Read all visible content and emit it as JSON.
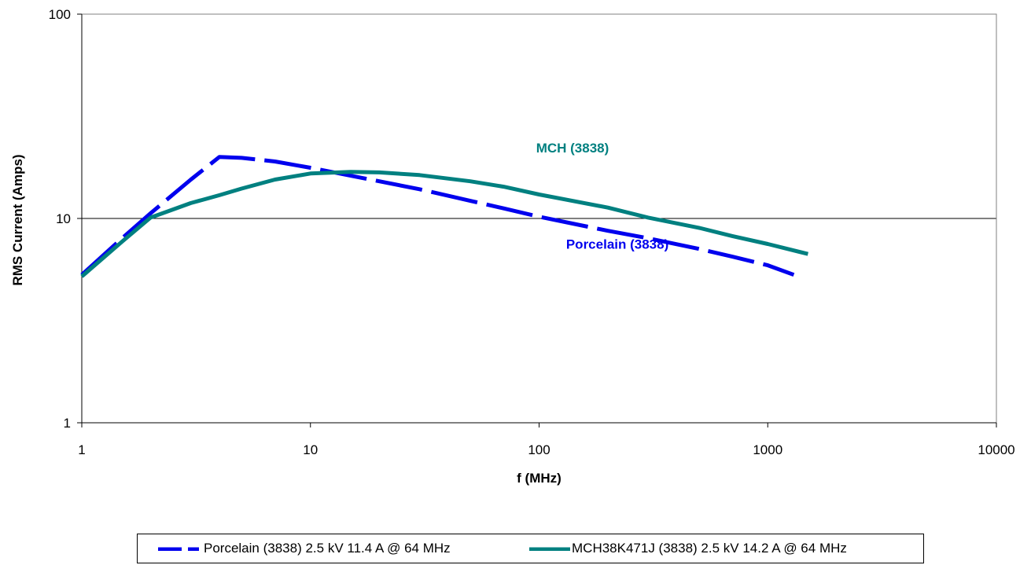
{
  "chart_data": {
    "type": "line",
    "title": "",
    "xlabel": "f (MHz)",
    "ylabel": "RMS Current (Amps)",
    "x_scale": "log",
    "y_scale": "log",
    "xlim": [
      1,
      10000
    ],
    "ylim": [
      1,
      100
    ],
    "x_ticks": [
      "1",
      "10",
      "100",
      "1000",
      "10000"
    ],
    "y_ticks": [
      "1",
      "10",
      "100"
    ],
    "grid": "horizontal major gridlines",
    "legend_position": "bottom",
    "series": [
      {
        "name": "Porcelain (3838) 2.5 kV 11.4 A @ 64 MHz",
        "color": "#0000ee",
        "style": "dashed",
        "points": [
          [
            1,
            5.3
          ],
          [
            1.5,
            8.0
          ],
          [
            2,
            10.6
          ],
          [
            3,
            15.5
          ],
          [
            4,
            20.0
          ],
          [
            5,
            19.8
          ],
          [
            7,
            19.0
          ],
          [
            10,
            17.7
          ],
          [
            20,
            15.2
          ],
          [
            30,
            13.9
          ],
          [
            50,
            12.2
          ],
          [
            70,
            11.2
          ],
          [
            100,
            10.2
          ],
          [
            200,
            8.7
          ],
          [
            300,
            8.0
          ],
          [
            500,
            7.1
          ],
          [
            700,
            6.5
          ],
          [
            1000,
            5.9
          ],
          [
            1300,
            5.3
          ]
        ]
      },
      {
        "name": "MCH38K471J (3838) 2.5 kV 14.2 A @ 64 MHz",
        "color": "#008080",
        "style": "solid",
        "points": [
          [
            1,
            5.2
          ],
          [
            1.5,
            7.7
          ],
          [
            2,
            10.1
          ],
          [
            3,
            11.9
          ],
          [
            4,
            13.0
          ],
          [
            5,
            14.0
          ],
          [
            7,
            15.5
          ],
          [
            10,
            16.6
          ],
          [
            15,
            16.9
          ],
          [
            20,
            16.8
          ],
          [
            30,
            16.3
          ],
          [
            50,
            15.2
          ],
          [
            70,
            14.3
          ],
          [
            100,
            13.1
          ],
          [
            200,
            11.3
          ],
          [
            300,
            10.1
          ],
          [
            500,
            9.0
          ],
          [
            700,
            8.2
          ],
          [
            1000,
            7.5
          ],
          [
            1500,
            6.7
          ]
        ]
      }
    ],
    "annotations": [
      {
        "text": "MCH (3838)",
        "x": 140,
        "y": 21,
        "color": "#008080"
      },
      {
        "text": "Porcelain (3838)",
        "x": 220,
        "y": 7.1,
        "color": "#0000ee"
      }
    ]
  }
}
